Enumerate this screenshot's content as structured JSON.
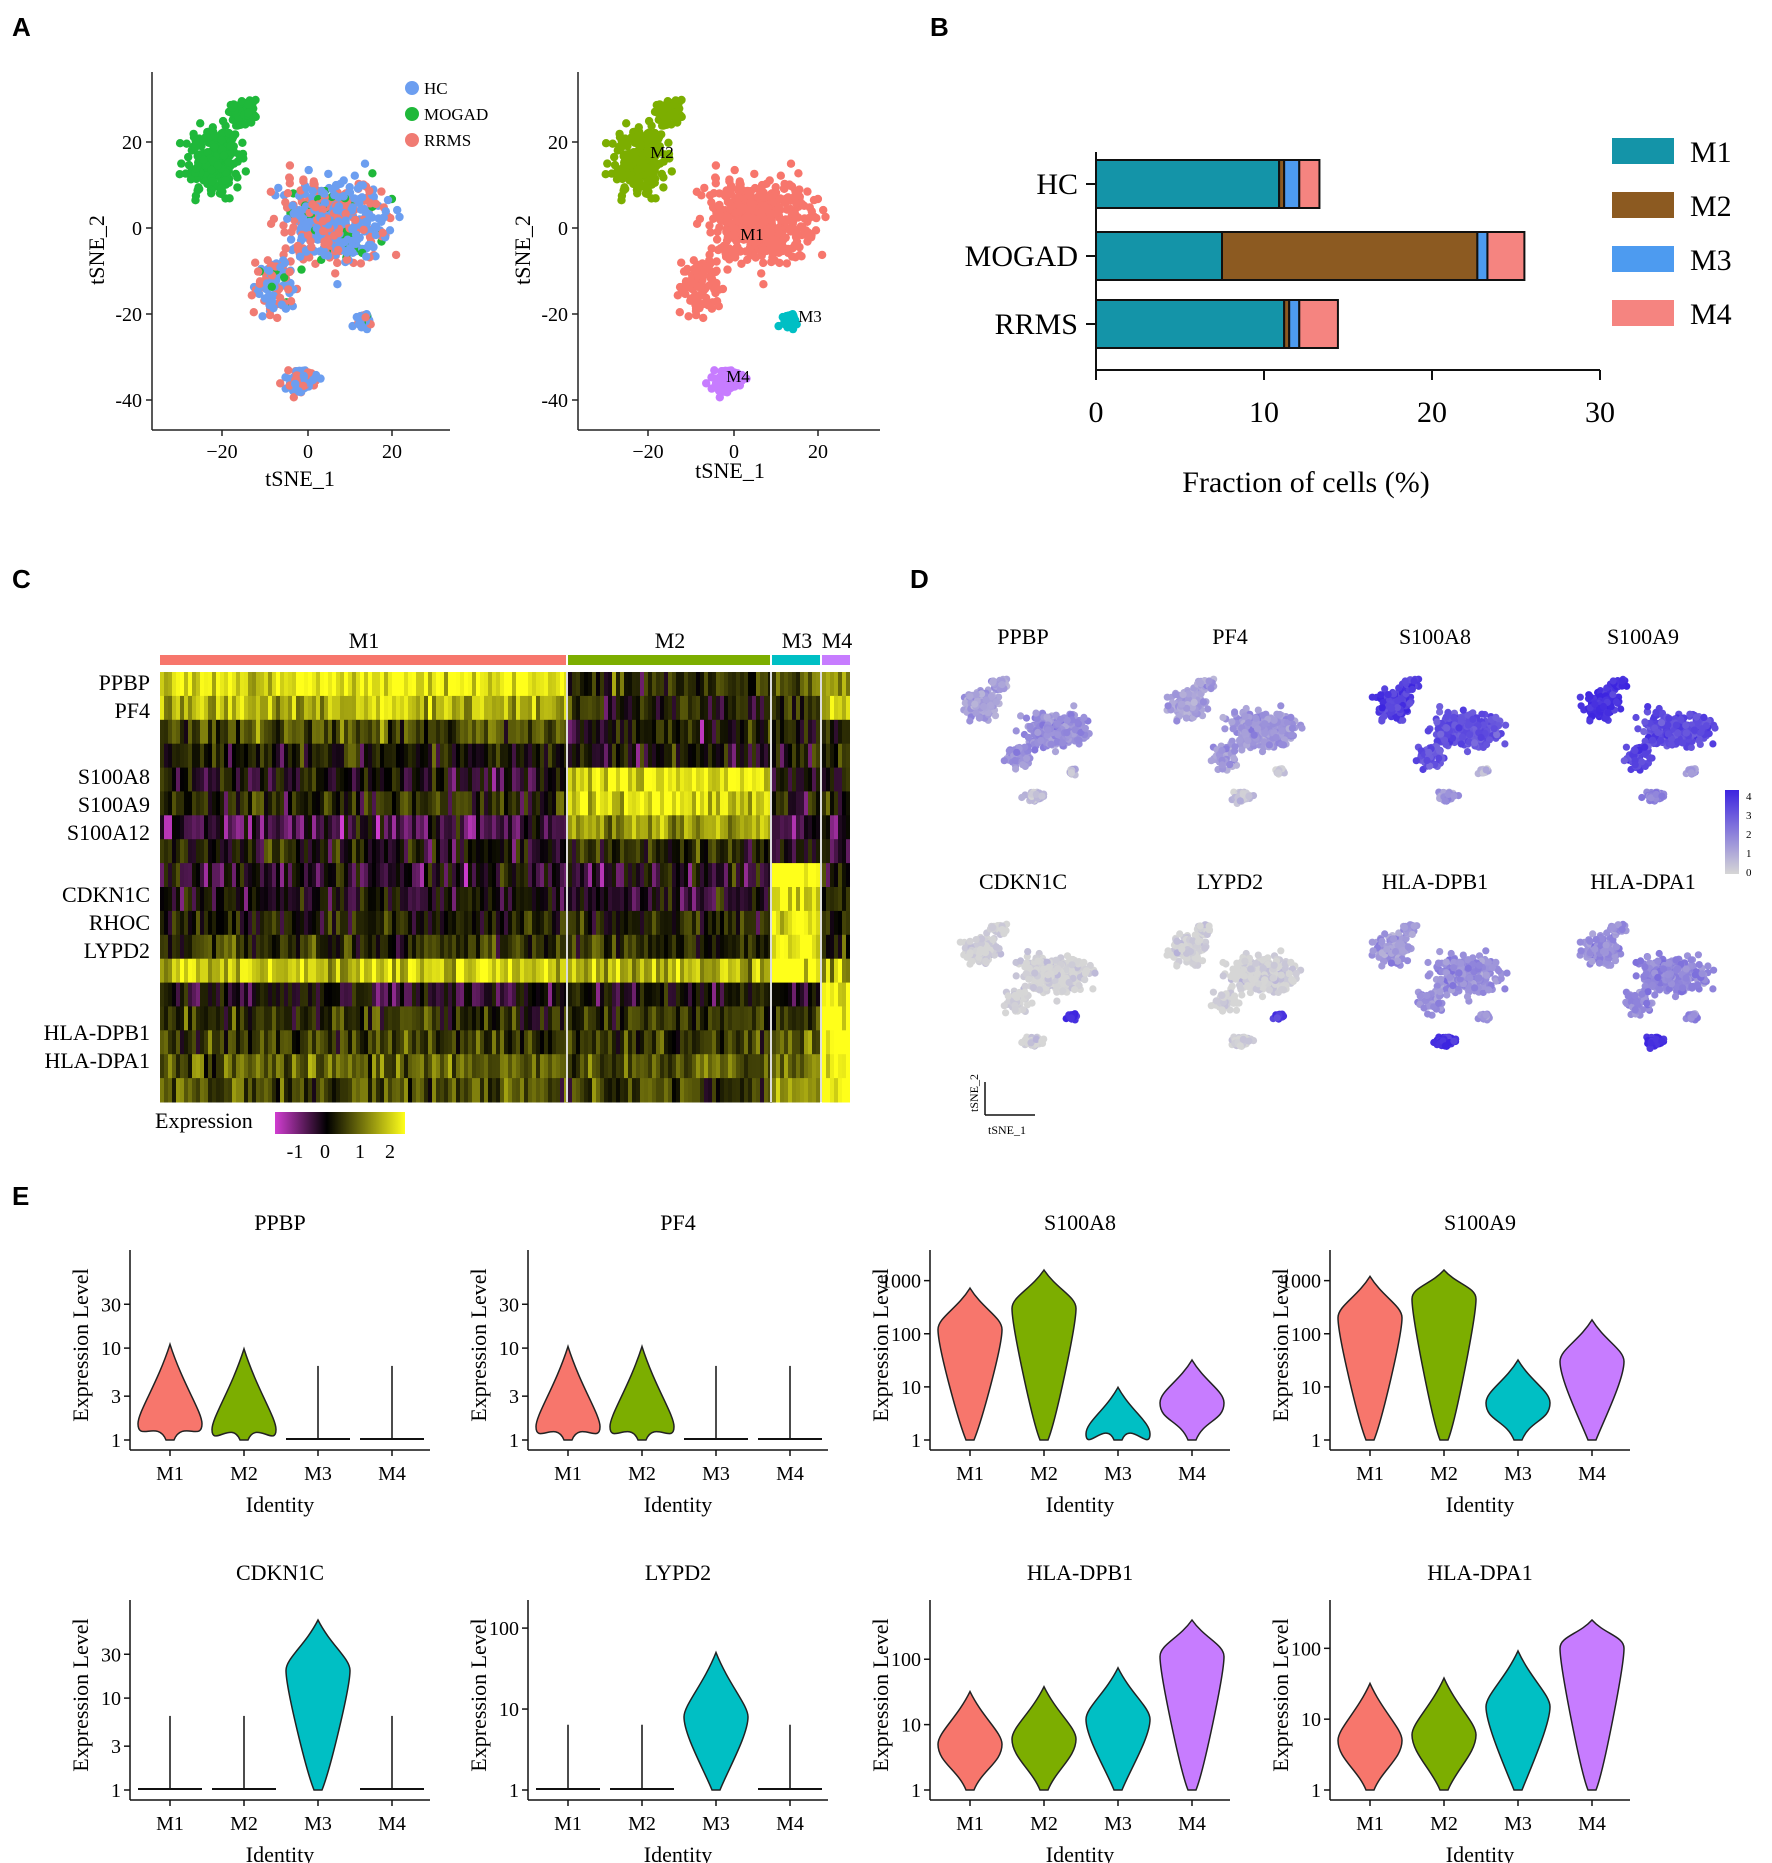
{
  "panels": {
    "A": "A",
    "B": "B",
    "C": "C",
    "D": "D",
    "E": "E"
  },
  "colors": {
    "HC": "#6c9ef0",
    "MOGAD": "#1fb83a",
    "RRMS": "#f07b73",
    "M1": "#f7766c",
    "M2": "#7cae00",
    "M3": "#00bfc4",
    "M4": "#c77cff",
    "B_M1": "#1494a8",
    "B_M2": "#8c5a21",
    "B_M3": "#4d9bf0",
    "B_M4": "#f58480",
    "featLow": "#d6d6d6",
    "featHigh": "#3d25e0"
  },
  "panelA": {
    "left": {
      "legend": [
        "HC",
        "MOGAD",
        "RRMS"
      ],
      "xlabel": "tSNE_1",
      "ylabel": "tSNE_2",
      "xticks": [
        "−20",
        "0",
        "20"
      ],
      "yticks": [
        "20",
        "0",
        "-20",
        "-40"
      ]
    },
    "right": {
      "clusters": [
        "M1",
        "M2",
        "M3",
        "M4"
      ],
      "xlabel": "tSNE_1",
      "ylabel": "tSNE_2",
      "xticks": [
        "−20",
        "0",
        "20"
      ],
      "yticks": [
        "20",
        "0",
        "-20",
        "-40"
      ]
    }
  },
  "chart_data": [
    {
      "id": "B",
      "type": "bar",
      "orientation": "horizontal",
      "stacked": true,
      "categories": [
        "HC",
        "MOGAD",
        "RRMS"
      ],
      "series": [
        {
          "name": "M1",
          "values": [
            10.9,
            7.5,
            11.2
          ]
        },
        {
          "name": "M2",
          "values": [
            0.3,
            15.2,
            0.3
          ]
        },
        {
          "name": "M3",
          "values": [
            0.9,
            0.6,
            0.6
          ]
        },
        {
          "name": "M4",
          "values": [
            1.2,
            2.2,
            2.3
          ]
        }
      ],
      "xlabel": "Fraction of cells (%)",
      "xlim": [
        0,
        30
      ],
      "xticks": [
        "0",
        "10",
        "20",
        "30"
      ],
      "legend": [
        "M1",
        "M2",
        "M3",
        "M4"
      ]
    },
    {
      "id": "C",
      "type": "heatmap",
      "clusters": [
        "M1",
        "M2",
        "M3",
        "M4"
      ],
      "genes": [
        "PPBP",
        "PF4",
        "S100A8",
        "S100A9",
        "S100A12",
        "CDKN1C",
        "RHOC",
        "LYPD2",
        "HLA-DPB1",
        "HLA-DPA1"
      ],
      "legend_title": "Expression",
      "legend_ticks": [
        "-1",
        "0",
        "1",
        "2"
      ]
    },
    {
      "id": "E",
      "type": "violin",
      "xlabel": "Identity",
      "ylabel": "Expression Level",
      "groups": [
        "M1",
        "M2",
        "M3",
        "M4"
      ],
      "plots": [
        {
          "gene": "PPBP",
          "yticks": [
            "1",
            "3",
            "10",
            "30"
          ],
          "ymax_log": 1.85,
          "medians": [
            1.5,
            1.3,
            1.0,
            1.0
          ]
        },
        {
          "gene": "PF4",
          "yticks": [
            "1",
            "3",
            "10",
            "30"
          ],
          "ymax_log": 1.85,
          "medians": [
            1.4,
            1.4,
            1.0,
            1.0
          ]
        },
        {
          "gene": "S100A8",
          "yticks": [
            "1",
            "10",
            "100",
            "1000"
          ],
          "ymax_log": 3.2,
          "medians": [
            120,
            300,
            1.3,
            5
          ]
        },
        {
          "gene": "S100A9",
          "yticks": [
            "1",
            "10",
            "100",
            "1000"
          ],
          "ymax_log": 3.2,
          "medians": [
            200,
            450,
            5,
            30
          ]
        },
        {
          "gene": "CDKN1C",
          "yticks": [
            "1",
            "3",
            "10",
            "30"
          ],
          "ymax_log": 1.85,
          "medians": [
            1.0,
            1.0,
            20,
            1.0
          ]
        },
        {
          "gene": "LYPD2",
          "yticks": [
            "1",
            "10",
            "100"
          ],
          "ymax_log": 2.1,
          "medians": [
            1.0,
            1.0,
            8,
            1.0
          ]
        },
        {
          "gene": "HLA-DPB1",
          "yticks": [
            "1",
            "10",
            "100"
          ],
          "ymax_log": 2.6,
          "medians": [
            5,
            6,
            12,
            110
          ]
        },
        {
          "gene": "HLA-DPA1",
          "yticks": [
            "1",
            "10",
            "100"
          ],
          "ymax_log": 2.4,
          "medians": [
            5,
            6,
            15,
            100
          ]
        }
      ]
    }
  ],
  "panelD": {
    "genes": [
      "PPBP",
      "PF4",
      "S100A8",
      "S100A9",
      "CDKN1C",
      "LYPD2",
      "HLA-DPB1",
      "HLA-DPA1"
    ],
    "colorbar_ticks": [
      "4",
      "3",
      "2",
      "1",
      "0"
    ],
    "axis_x": "tSNE_1",
    "axis_y": "tSNE_2"
  }
}
